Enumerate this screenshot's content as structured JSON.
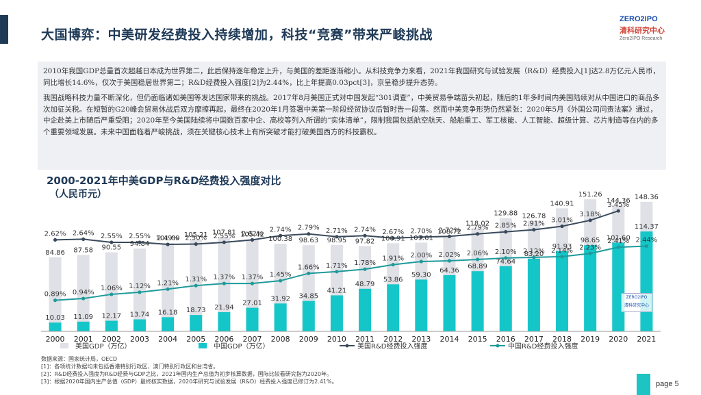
{
  "header": {
    "title": "大国博弈：中美研发经费投入持续增加，科技“竞赛”带来严峻挑战",
    "logo_top": "ZERO2IPO",
    "logo_cn": "清科研究中心",
    "logo_en": "Zero2IPO Research"
  },
  "summary": {
    "paragraph1": "2010年我国GDP总量首次超越日本成为世界第二，此后保持逐年稳定上升，与美国的差距逐渐缩小。从科技竞争力来看，2021年我国研究与试验发展（R&D）经费投入[1]达2.8万亿元人民币，同比增长14.6%，仅次于美国稳居世界第二；R&D经费投入强度[2]为2.44%，比上年提高0.03pct[3]，京呈稳步提升态势。",
    "paragraph2": "我国战略科技力量不断深化，但仍面临诸如美国等发达国家带来的挑战。2017年8月美国正式对中国发起“301调查”，中美贸易争端苗头初起，随后的1年多时间内美国陆续对从中国进口的商品多次加征关税。在短暂的G20峰会贸易休战后双方摩擦再起，最终在2020年1月签署中美第一阶段经贸协议后暂时告一段落。然而中美竞争形势仍然紧张：2020年5月《外国公司问责法案》通过，中企赴美上市随后严重受阻；2020年至今美国陆续将中国数百家中企、高校等列入所谓的“实体清单”，限制我国包括航空航天、船舶重工、军工核能、人工智能、超级计算、芯片制造等在内的多个重要领域发展。未来中国面临着严峻挑战，须在关键核心技术上有所突破才能打破美国西方的科技霸权。"
  },
  "chart_data": {
    "type": "bar+line",
    "title": "2000-2021年中美GDP与R&D经费投入强度对比",
    "subtitle": "（人民币元）",
    "categories": [
      "2000",
      "2001",
      "2002",
      "2003",
      "2004",
      "2005",
      "2006",
      "2007",
      "2008",
      "2009",
      "2010",
      "2011",
      "2012",
      "2013",
      "2014",
      "2015",
      "2016",
      "2017",
      "2018",
      "2019",
      "2020",
      "2021"
    ],
    "series": [
      {
        "name": "美国GDP（万亿）",
        "kind": "bar",
        "color": "#dfe1e6",
        "values": [
          84.86,
          87.58,
          90.55,
          94.84,
          101.09,
          105.21,
          107.81,
          105.42,
          100.38,
          98.63,
          98.95,
          97.82,
          100.91,
          101.61,
          108.72,
          118.02,
          129.88,
          126.78,
          140.91,
          151.26,
          144.36,
          148.36
        ]
      },
      {
        "name": "中国GDP（万亿）",
        "kind": "bar",
        "color": "#15c6c9",
        "values": [
          10.03,
          11.09,
          12.17,
          13.74,
          16.18,
          18.73,
          21.94,
          27.01,
          31.92,
          34.85,
          41.21,
          48.79,
          53.86,
          59.3,
          64.36,
          68.89,
          74.64,
          83.2,
          91.93,
          98.65,
          101.6,
          114.37
        ]
      },
      {
        "name": "美国R&D经费投入强度",
        "kind": "line",
        "color": "#3a4a5c",
        "values": [
          2.62,
          2.64,
          2.55,
          2.55,
          2.49,
          2.5,
          2.55,
          2.62,
          2.74,
          2.79,
          2.71,
          2.74,
          2.67,
          2.7,
          2.72,
          2.79,
          2.85,
          2.91,
          3.01,
          3.18,
          3.45,
          null
        ]
      },
      {
        "name": "中国R&D经费投入强度",
        "kind": "line",
        "color": "#1e9a9a",
        "values": [
          0.89,
          0.94,
          1.06,
          1.12,
          1.21,
          1.31,
          1.37,
          1.37,
          1.45,
          1.66,
          1.71,
          1.78,
          1.91,
          2.0,
          2.02,
          2.06,
          2.1,
          2.12,
          2.14,
          2.23,
          2.41,
          2.44
        ]
      }
    ],
    "us_gdp_labels": [
      "84.86",
      "87.58",
      "90.55",
      "94.84",
      "101.09",
      "105.21",
      "107.81",
      "105.42",
      "100.38",
      "98.63",
      "98.95",
      "97.82",
      "100.91",
      "101.61",
      "108.72",
      "118.02",
      "129.88",
      "126.78",
      "140.91",
      "151.26",
      "144.36",
      "148.36"
    ],
    "cn_gdp_labels": [
      "10.03",
      "11.09",
      "12.17",
      "13.74",
      "16.18",
      "18.73",
      "21.94",
      "27.01",
      "31.92",
      "34.85",
      "41.21",
      "48.79",
      "53.86",
      "59.30",
      "64.36",
      "68.89",
      "74.64",
      "83.20",
      "91.93",
      "98.65",
      "101.60",
      "114.37"
    ],
    "us_rd_labels": [
      "2.62%",
      "2.64%",
      "2.55%",
      "2.55%",
      "2.49%",
      "2.50%",
      "2.55%",
      "2.62%",
      "2.74%",
      "2.79%",
      "2.71%",
      "2.74%",
      "2.67%",
      "2.70%",
      "2.72%",
      "2.79%",
      "2.85%",
      "2.91%",
      "3.01%",
      "3.18%",
      "3.45%",
      ""
    ],
    "cn_rd_labels": [
      "0.89%",
      "0.94%",
      "1.06%",
      "1.12%",
      "1.21%",
      "1.31%",
      "1.37%",
      "1.37%",
      "1.45%",
      "1.66%",
      "1.71%",
      "1.78%",
      "1.91%",
      "2.00%",
      "2.02%",
      "2.06%",
      "2.10%",
      "2.12%",
      "2.14%",
      "2.23%",
      "2.41%",
      "2.44%"
    ],
    "legend": [
      "美国GDP（万亿）",
      "中国GDP（万亿）",
      "美国R&D经费投入强度",
      "中国R&D经费投入强度"
    ],
    "legend_position": "bottom",
    "ylim_bar": [
      0,
      160
    ],
    "ylim_line": [
      0,
      4.0
    ]
  },
  "notes": {
    "source": "数据来源：国家统计局，OECD",
    "n1": "[1]：各项统计数据均未包括香港特别行政区、澳门特别行政区和台湾省。",
    "n2": "[2]：R&D经费投入强度为R&D经费与GDP之比，2021年国内生产总值为初步核算数据，国际比较看研究指为2020年。",
    "n3": "[3]：根据2020年国内生产总值（GDP）最终核实数据，2020年研究与试验发展（R&D）经费投入强度已修订为2.41%。"
  },
  "footer": {
    "page_label": "page 5"
  },
  "watermark": {
    "line1": "ZERO2IPO",
    "line2": "清科研究中心"
  }
}
